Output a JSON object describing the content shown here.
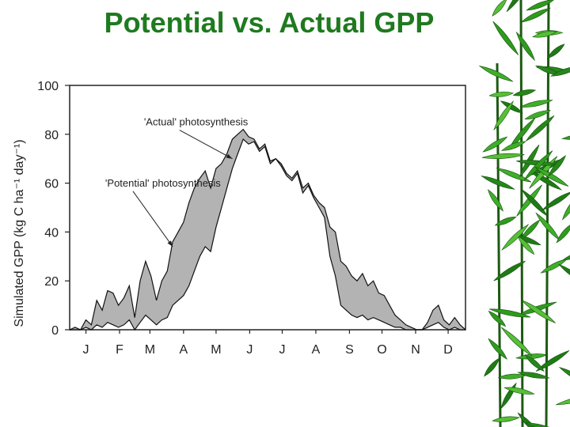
{
  "slide": {
    "title": "Potential vs. Actual GPP",
    "decoration": "bamboo-leaves"
  },
  "chart_data": {
    "type": "area",
    "title": "",
    "xlabel": "",
    "ylabel": "Simulated GPP (kg C ha⁻¹ day⁻¹)",
    "ylim": [
      0,
      100
    ],
    "yticks": [
      0,
      20,
      40,
      60,
      80,
      100
    ],
    "xlim": [
      0,
      365
    ],
    "month_labels": [
      "J",
      "F",
      "M",
      "A",
      "M",
      "J",
      "J",
      "A",
      "S",
      "O",
      "N",
      "D"
    ],
    "month_label_days": [
      15,
      46,
      74,
      105,
      135,
      166,
      196,
      227,
      258,
      288,
      319,
      349
    ],
    "grid": false,
    "colors": {
      "gap_fill": "#b3b3b3",
      "line": "#111111"
    },
    "annotations": [
      {
        "text": "'Actual' photosynthesis",
        "x": 150,
        "y": 70,
        "text_x": 105,
        "text_y": 83
      },
      {
        "text": "'Potential' photosynthesis",
        "x": 95,
        "y": 34,
        "text_x": 62,
        "text_y": 58
      }
    ],
    "series": [
      {
        "name": "'Potential' photosynthesis",
        "x": [
          0,
          5,
          10,
          15,
          20,
          25,
          30,
          35,
          40,
          45,
          50,
          55,
          60,
          65,
          70,
          75,
          80,
          85,
          90,
          95,
          100,
          105,
          110,
          115,
          120,
          125,
          130,
          135,
          140,
          145,
          150,
          155,
          160,
          165,
          170,
          175,
          180,
          185,
          190,
          195,
          200,
          205,
          210,
          215,
          220,
          225,
          230,
          235,
          240,
          245,
          250,
          255,
          260,
          265,
          270,
          275,
          280,
          285,
          290,
          295,
          300,
          305,
          310,
          315,
          320,
          325,
          330,
          335,
          340,
          345,
          350,
          355,
          360,
          365
        ],
        "values": [
          0,
          1,
          0,
          4,
          2,
          12,
          8,
          16,
          15,
          10,
          13,
          18,
          5,
          20,
          28,
          22,
          12,
          20,
          24,
          36,
          40,
          44,
          52,
          58,
          62,
          65,
          58,
          66,
          68,
          72,
          78,
          80,
          82,
          79,
          78,
          74,
          76,
          69,
          70,
          68,
          64,
          62,
          65,
          58,
          60,
          55,
          52,
          50,
          42,
          40,
          28,
          26,
          22,
          20,
          23,
          18,
          20,
          15,
          14,
          10,
          6,
          4,
          2,
          1,
          0,
          0,
          3,
          8,
          10,
          4,
          2,
          5,
          2,
          0
        ]
      },
      {
        "name": "'Actual' photosynthesis",
        "x": [
          0,
          5,
          10,
          15,
          20,
          25,
          30,
          35,
          40,
          45,
          50,
          55,
          60,
          65,
          70,
          75,
          80,
          85,
          90,
          95,
          100,
          105,
          110,
          115,
          120,
          125,
          130,
          135,
          140,
          145,
          150,
          155,
          160,
          165,
          170,
          175,
          180,
          185,
          190,
          195,
          200,
          205,
          210,
          215,
          220,
          225,
          230,
          235,
          240,
          245,
          250,
          255,
          260,
          265,
          270,
          275,
          280,
          285,
          290,
          295,
          300,
          305,
          310,
          315,
          320,
          325,
          330,
          335,
          340,
          345,
          350,
          355,
          360,
          365
        ],
        "values": [
          0,
          0,
          0,
          1,
          0,
          2,
          1,
          3,
          2,
          1,
          2,
          4,
          0,
          3,
          6,
          4,
          2,
          4,
          5,
          10,
          12,
          14,
          18,
          24,
          30,
          34,
          32,
          42,
          50,
          58,
          66,
          72,
          78,
          76,
          77,
          73,
          75,
          68,
          70,
          67,
          63,
          61,
          64,
          56,
          59,
          54,
          50,
          46,
          30,
          22,
          10,
          8,
          6,
          5,
          6,
          4,
          5,
          4,
          3,
          2,
          1,
          1,
          0,
          0,
          0,
          0,
          1,
          2,
          3,
          1,
          0,
          1,
          0,
          0
        ]
      }
    ]
  }
}
